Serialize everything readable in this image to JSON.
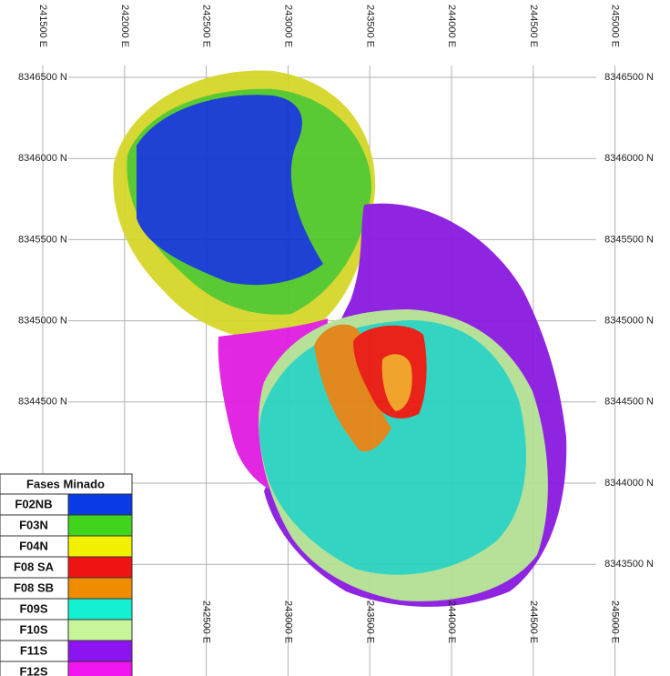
{
  "grid": {
    "eastings": [
      "241500 E",
      "242000 E",
      "242500 E",
      "243000 E",
      "243500 E",
      "244000 E",
      "244500 E",
      "245000 E"
    ],
    "northings": [
      "8346500 N",
      "8346000 N",
      "8345500 N",
      "8345000 N",
      "8344500 N",
      "8344000 N",
      "8343500 N"
    ]
  },
  "legend": {
    "title": "Fases Minado",
    "items": [
      {
        "name": "F02NB",
        "color": "#0a3ce6"
      },
      {
        "name": "F03N",
        "color": "#40d41c"
      },
      {
        "name": "F04N",
        "color": "#f2f200"
      },
      {
        "name": "F08 SA",
        "color": "#f01414"
      },
      {
        "name": "F08 SB",
        "color": "#f08c00"
      },
      {
        "name": "F09S",
        "color": "#14f0d2"
      },
      {
        "name": "F10S",
        "color": "#c8f59a"
      },
      {
        "name": "F11S",
        "color": "#8c14f0"
      },
      {
        "name": "F12S",
        "color": "#f014f0"
      }
    ]
  }
}
